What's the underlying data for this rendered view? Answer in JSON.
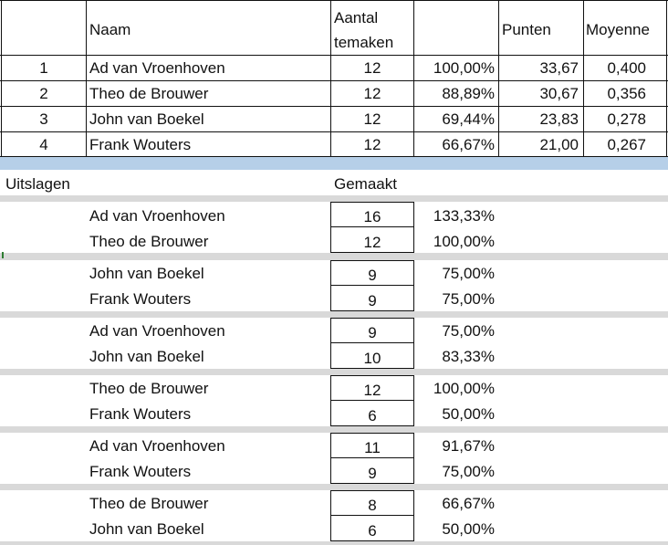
{
  "standings": {
    "headers": {
      "naam": "Naam",
      "aantal_line1": "Aantal",
      "aantal_line2": "temaken",
      "punten": "Punten",
      "moyenne": "Moyenne"
    },
    "rows": [
      {
        "rank": "1",
        "naam": "Ad van Vroenhoven",
        "aantal": "12",
        "pct": "100,00%",
        "punten": "33,67",
        "moyenne": "0,400"
      },
      {
        "rank": "2",
        "naam": "Theo de Brouwer",
        "aantal": "12",
        "pct": "88,89%",
        "punten": "30,67",
        "moyenne": "0,356"
      },
      {
        "rank": "3",
        "naam": "John van Boekel",
        "aantal": "12",
        "pct": "69,44%",
        "punten": "23,83",
        "moyenne": "0,278"
      },
      {
        "rank": "4",
        "naam": "Frank Wouters",
        "aantal": "12",
        "pct": "66,67%",
        "punten": "21,00",
        "moyenne": "0,267"
      }
    ]
  },
  "results": {
    "title": "Uitslagen",
    "gemaakt_header": "Gemaakt",
    "matches": [
      {
        "p1": {
          "name": "Ad van Vroenhoven",
          "score": "16",
          "pct": "133,33%"
        },
        "p2": {
          "name": "Theo de Brouwer",
          "score": "12",
          "pct": "100,00%"
        }
      },
      {
        "p1": {
          "name": "John van Boekel",
          "score": "9",
          "pct": "75,00%"
        },
        "p2": {
          "name": "Frank Wouters",
          "score": "9",
          "pct": "75,00%"
        }
      },
      {
        "p1": {
          "name": "Ad van Vroenhoven",
          "score": "9",
          "pct": "75,00%"
        },
        "p2": {
          "name": "John van Boekel",
          "score": "10",
          "pct": "83,33%"
        }
      },
      {
        "p1": {
          "name": "Theo de Brouwer",
          "score": "12",
          "pct": "100,00%"
        },
        "p2": {
          "name": "Frank Wouters",
          "score": "6",
          "pct": "50,00%"
        }
      },
      {
        "p1": {
          "name": "Ad van Vroenhoven",
          "score": "11",
          "pct": "91,67%"
        },
        "p2": {
          "name": "Frank Wouters",
          "score": "9",
          "pct": "75,00%"
        }
      },
      {
        "p1": {
          "name": "Theo de Brouwer",
          "score": "8",
          "pct": "66,67%"
        },
        "p2": {
          "name": "John van Boekel",
          "score": "6",
          "pct": "50,00%"
        }
      }
    ]
  },
  "colors": {
    "band_blue": "#b6cfe8",
    "band_gray": "#d9d9d9",
    "grid_marker": "#2e7d32"
  }
}
